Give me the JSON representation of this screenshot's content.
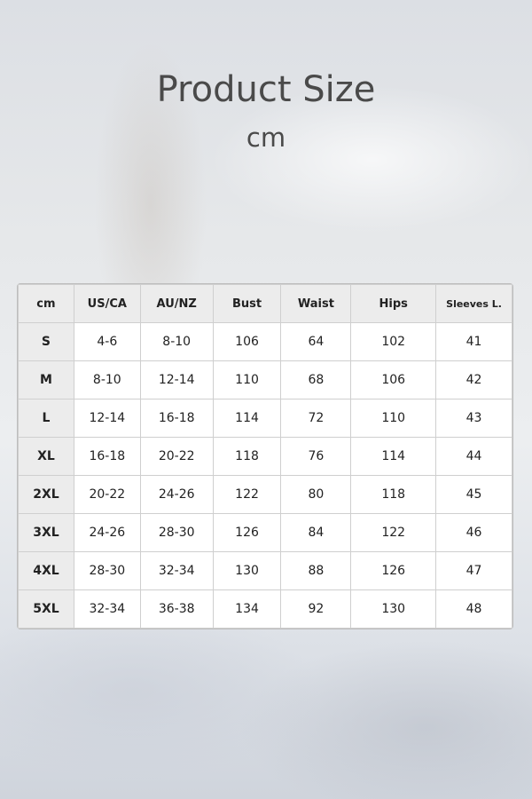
{
  "title": "Product Size",
  "unit": "cm",
  "table": {
    "headers": [
      "cm",
      "US/CA",
      "AU/NZ",
      "Bust",
      "Waist",
      "Hips",
      "Sleeves L."
    ],
    "rows": [
      [
        "S",
        "4-6",
        "8-10",
        "106",
        "64",
        "102",
        "41"
      ],
      [
        "M",
        "8-10",
        "12-14",
        "110",
        "68",
        "106",
        "42"
      ],
      [
        "L",
        "12-14",
        "16-18",
        "114",
        "72",
        "110",
        "43"
      ],
      [
        "XL",
        "16-18",
        "20-22",
        "118",
        "76",
        "114",
        "44"
      ],
      [
        "2XL",
        "20-22",
        "24-26",
        "122",
        "80",
        "118",
        "45"
      ],
      [
        "3XL",
        "24-26",
        "28-30",
        "126",
        "84",
        "122",
        "46"
      ],
      [
        "4XL",
        "28-30",
        "32-34",
        "130",
        "88",
        "126",
        "47"
      ],
      [
        "5XL",
        "32-34",
        "36-38",
        "134",
        "92",
        "130",
        "48"
      ]
    ]
  }
}
